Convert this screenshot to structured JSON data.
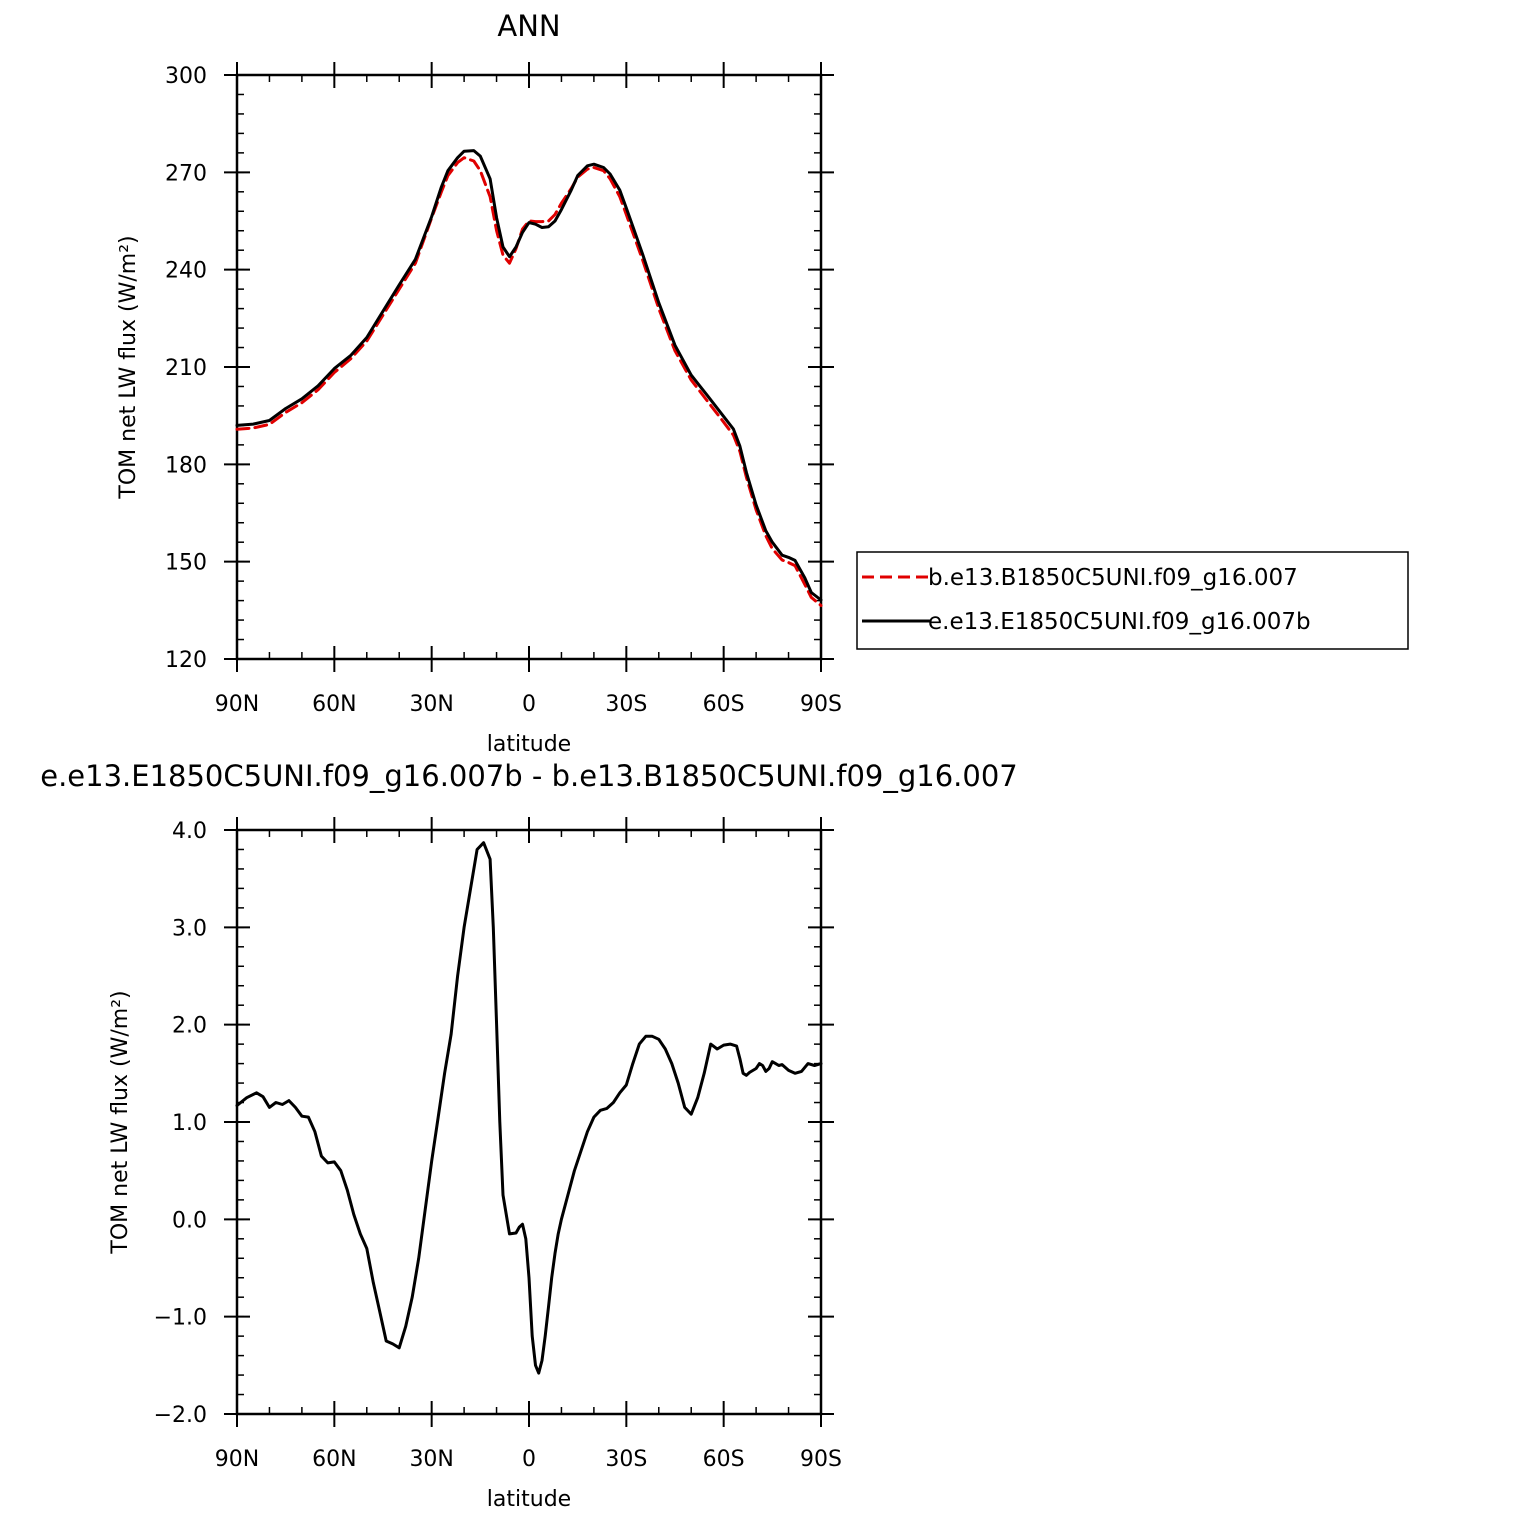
{
  "chart_data": [
    {
      "type": "line",
      "title": "ANN",
      "xlabel": "latitude",
      "ylabel": "TOM net LW flux (W/m²)",
      "xlim": [
        90,
        -90
      ],
      "ylim": [
        120,
        300
      ],
      "x_ticks": [
        {
          "value": 90,
          "label": "90N"
        },
        {
          "value": 60,
          "label": "60N"
        },
        {
          "value": 30,
          "label": "30N"
        },
        {
          "value": 0,
          "label": "0"
        },
        {
          "value": -30,
          "label": "30S"
        },
        {
          "value": -60,
          "label": "60S"
        },
        {
          "value": -90,
          "label": "90S"
        }
      ],
      "y_ticks": [
        {
          "value": 300,
          "label": "300"
        },
        {
          "value": 270,
          "label": "270"
        },
        {
          "value": 240,
          "label": "240"
        },
        {
          "value": 210,
          "label": "210"
        },
        {
          "value": 180,
          "label": "180"
        },
        {
          "value": 150,
          "label": "150"
        },
        {
          "value": 120,
          "label": "120"
        }
      ],
      "legend": "right",
      "series": [
        {
          "name": "b.e13.B1850C5UNI.f09_g16.007",
          "color": "#e00000",
          "dash": "dashed",
          "x": [
            90,
            85,
            80,
            75,
            70,
            65,
            60,
            55,
            50,
            45,
            40,
            35,
            30,
            27,
            25,
            22,
            20,
            17,
            15,
            12,
            10,
            8,
            6,
            4,
            2,
            0,
            -2,
            -4,
            -6,
            -8,
            -10,
            -13,
            -15,
            -18,
            -20,
            -23,
            -25,
            -28,
            -30,
            -35,
            -40,
            -45,
            -50,
            -55,
            -60,
            -63,
            -65,
            -67,
            -70,
            -73,
            -75,
            -78,
            -80,
            -82,
            -85,
            -87,
            -90
          ],
          "y": [
            190.8,
            191.2,
            192.3,
            196.0,
            199.0,
            203.0,
            208.3,
            212.5,
            218.0,
            226.0,
            234.0,
            242.0,
            256.0,
            264.0,
            269.0,
            273.0,
            274.5,
            273.5,
            270.5,
            262.5,
            252.0,
            244.5,
            242.0,
            246.5,
            252.5,
            255.0,
            254.8,
            254.8,
            255.0,
            257.0,
            260.5,
            265.0,
            268.5,
            271.0,
            271.5,
            270.5,
            268.0,
            262.5,
            257.0,
            243.0,
            228.0,
            215.0,
            206.0,
            199.5,
            193.0,
            189.0,
            184.0,
            176.0,
            166.0,
            158.0,
            154.0,
            150.5,
            149.7,
            148.8,
            143.0,
            139.0,
            136.5
          ]
        },
        {
          "name": "e.e13.E1850C5UNI.f09_g16.007b",
          "color": "#000000",
          "dash": "solid",
          "x": [
            90,
            85,
            80,
            75,
            70,
            65,
            60,
            55,
            50,
            45,
            40,
            35,
            30,
            27,
            25,
            22,
            20,
            17,
            15,
            12,
            10,
            8,
            6,
            4,
            2,
            0,
            -2,
            -4,
            -6,
            -8,
            -10,
            -13,
            -15,
            -18,
            -20,
            -23,
            -25,
            -28,
            -30,
            -35,
            -40,
            -45,
            -50,
            -55,
            -60,
            -63,
            -65,
            -67,
            -70,
            -73,
            -75,
            -78,
            -80,
            -82,
            -85,
            -87,
            -90
          ],
          "y": [
            192.0,
            192.4,
            193.5,
            197.2,
            200.2,
            204.2,
            209.5,
            213.5,
            219.1,
            227.2,
            235.3,
            243.2,
            256.4,
            265.5,
            270.5,
            274.5,
            276.5,
            276.7,
            275.0,
            268.0,
            256.0,
            247.0,
            244.0,
            247.0,
            251.5,
            254.5,
            254.0,
            253.0,
            253.2,
            255.0,
            258.5,
            264.5,
            269.0,
            272.0,
            272.5,
            271.5,
            269.5,
            264.5,
            259.0,
            244.8,
            229.8,
            216.7,
            207.5,
            201.2,
            194.7,
            190.9,
            185.6,
            177.5,
            167.5,
            159.5,
            156.0,
            152.0,
            151.3,
            150.4,
            145.0,
            140.5,
            138.2
          ]
        }
      ]
    },
    {
      "type": "line",
      "title": "e.e13.E1850C5UNI.f09_g16.007b - b.e13.B1850C5UNI.f09_g16.007",
      "xlabel": "latitude",
      "ylabel": "TOM net LW flux (W/m²)",
      "xlim": [
        90,
        -90
      ],
      "ylim": [
        -2.0,
        4.0
      ],
      "x_ticks": [
        {
          "value": 90,
          "label": "90N"
        },
        {
          "value": 60,
          "label": "60N"
        },
        {
          "value": 30,
          "label": "30N"
        },
        {
          "value": 0,
          "label": "0"
        },
        {
          "value": -30,
          "label": "30S"
        },
        {
          "value": -60,
          "label": "60S"
        },
        {
          "value": -90,
          "label": "90S"
        }
      ],
      "y_ticks": [
        {
          "value": 4.0,
          "label": "4.0"
        },
        {
          "value": 3.0,
          "label": "3.0"
        },
        {
          "value": 2.0,
          "label": "2.0"
        },
        {
          "value": 1.0,
          "label": "1.0"
        },
        {
          "value": 0.0,
          "label": "0.0"
        },
        {
          "value": -1.0,
          "label": "−1.0"
        },
        {
          "value": -2.0,
          "label": "−2.0"
        }
      ],
      "series": [
        {
          "color": "#000000",
          "dash": "solid",
          "x": [
            90,
            87,
            84,
            82,
            80,
            78,
            76,
            74,
            72,
            70,
            68,
            66,
            64,
            62,
            60,
            58,
            56,
            54,
            52,
            50,
            48,
            46,
            44,
            42,
            40,
            38,
            36,
            34,
            32,
            30,
            28,
            26,
            24,
            22,
            20,
            18,
            16,
            14,
            12,
            11,
            10,
            9,
            8,
            6,
            4,
            3,
            2,
            1,
            0,
            -1,
            -2,
            -3,
            -4,
            -5,
            -6,
            -7,
            -8,
            -9,
            -10,
            -12,
            -14,
            -16,
            -18,
            -20,
            -22,
            -24,
            -26,
            -28,
            -30,
            -32,
            -34,
            -36,
            -38,
            -40,
            -42,
            -44,
            -46,
            -48,
            -50,
            -52,
            -54,
            -56,
            -58,
            -60,
            -62,
            -64,
            -65,
            -66,
            -67,
            -68,
            -70,
            -71,
            -72,
            -73,
            -74,
            -75,
            -76,
            -77,
            -78,
            -80,
            -82,
            -84,
            -86,
            -88,
            -90
          ],
          "y": [
            1.17,
            1.25,
            1.3,
            1.26,
            1.15,
            1.2,
            1.18,
            1.22,
            1.15,
            1.06,
            1.05,
            0.9,
            0.65,
            0.58,
            0.59,
            0.5,
            0.3,
            0.05,
            -0.15,
            -0.3,
            -0.65,
            -0.95,
            -1.25,
            -1.28,
            -1.32,
            -1.1,
            -0.8,
            -0.4,
            0.1,
            0.6,
            1.05,
            1.5,
            1.9,
            2.5,
            3.0,
            3.4,
            3.8,
            3.87,
            3.7,
            3.0,
            2.0,
            1.0,
            0.25,
            -0.15,
            -0.14,
            -0.08,
            -0.05,
            -0.2,
            -0.6,
            -1.2,
            -1.5,
            -1.58,
            -1.45,
            -1.2,
            -0.9,
            -0.6,
            -0.35,
            -0.15,
            0.0,
            0.25,
            0.5,
            0.7,
            0.9,
            1.05,
            1.12,
            1.14,
            1.2,
            1.3,
            1.38,
            1.6,
            1.8,
            1.88,
            1.88,
            1.85,
            1.75,
            1.6,
            1.4,
            1.15,
            1.08,
            1.25,
            1.5,
            1.8,
            1.75,
            1.79,
            1.8,
            1.78,
            1.65,
            1.5,
            1.48,
            1.51,
            1.55,
            1.6,
            1.58,
            1.52,
            1.55,
            1.62,
            1.6,
            1.58,
            1.59,
            1.53,
            1.5,
            1.52,
            1.6,
            1.58,
            1.6
          ]
        }
      ]
    }
  ]
}
